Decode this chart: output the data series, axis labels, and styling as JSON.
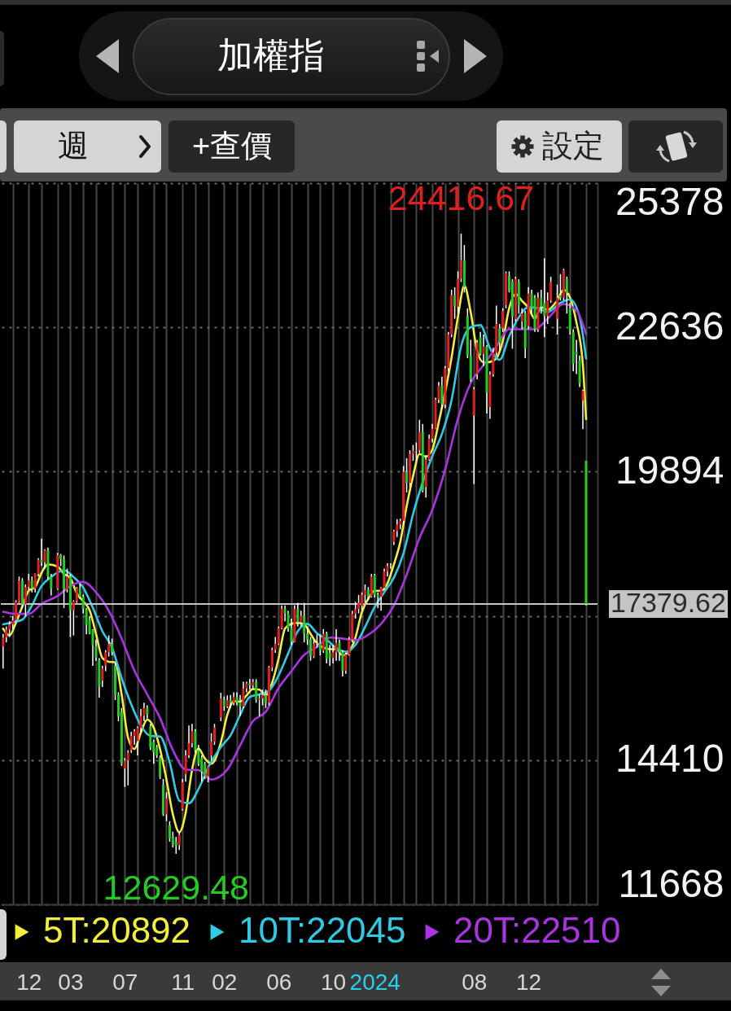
{
  "chart_data": {
    "type": "candlestick",
    "title": "加權指",
    "x": [
      "2021-10-11",
      "2021-10-18",
      "2021-10-25",
      "2021-11-01",
      "2021-11-08",
      "2021-11-15",
      "2021-11-22",
      "2021-11-29",
      "2021-12-06",
      "2021-12-13",
      "2021-12-20",
      "2021-12-27",
      "2022-01-03",
      "2022-01-10",
      "2022-01-17",
      "2022-01-24",
      "2022-02-07",
      "2022-02-14",
      "2022-02-21",
      "2022-02-28",
      "2022-03-07",
      "2022-03-14",
      "2022-03-21",
      "2022-03-28",
      "2022-04-04",
      "2022-04-11",
      "2022-04-18",
      "2022-04-25",
      "2022-05-02",
      "2022-05-09",
      "2022-05-16",
      "2022-05-23",
      "2022-05-30",
      "2022-06-06",
      "2022-06-13",
      "2022-06-20",
      "2022-06-27",
      "2022-07-04",
      "2022-07-11",
      "2022-07-18",
      "2022-07-25",
      "2022-08-01",
      "2022-08-08",
      "2022-08-15",
      "2022-08-22",
      "2022-08-29",
      "2022-09-05",
      "2022-09-12",
      "2022-09-19",
      "2022-09-26",
      "2022-10-03",
      "2022-10-10",
      "2022-10-17",
      "2022-10-24",
      "2022-10-31",
      "2022-11-07",
      "2022-11-14",
      "2022-11-21",
      "2022-11-28",
      "2022-12-05",
      "2022-12-12",
      "2022-12-19",
      "2022-12-26",
      "2023-01-02",
      "2023-01-09",
      "2023-01-16",
      "2023-01-30",
      "2023-02-06",
      "2023-02-13",
      "2023-02-20",
      "2023-02-27",
      "2023-03-06",
      "2023-03-13",
      "2023-03-20",
      "2023-03-27",
      "2023-04-03",
      "2023-04-10",
      "2023-04-17",
      "2023-04-24",
      "2023-05-01",
      "2023-05-08",
      "2023-05-15",
      "2023-05-22",
      "2023-05-29",
      "2023-06-05",
      "2023-06-12",
      "2023-06-19",
      "2023-06-26",
      "2023-07-03",
      "2023-07-10",
      "2023-07-17",
      "2023-07-24",
      "2023-07-31",
      "2023-08-07",
      "2023-08-14",
      "2023-08-21",
      "2023-08-28",
      "2023-09-04",
      "2023-09-11",
      "2023-09-18",
      "2023-09-25",
      "2023-10-02",
      "2023-10-09",
      "2023-10-16",
      "2023-10-23",
      "2023-10-30",
      "2023-11-06",
      "2023-11-13",
      "2023-11-20",
      "2023-11-27",
      "2023-12-04",
      "2023-12-11",
      "2023-12-18",
      "2023-12-25",
      "2024-01-01",
      "2024-01-08",
      "2024-01-15",
      "2024-01-22",
      "2024-01-29",
      "2024-02-05",
      "2024-02-12",
      "2024-02-19",
      "2024-02-26",
      "2024-03-04",
      "2024-03-11",
      "2024-03-18",
      "2024-03-25",
      "2024-04-01",
      "2024-04-08",
      "2024-04-15",
      "2024-04-22",
      "2024-04-29",
      "2024-05-06",
      "2024-05-13",
      "2024-05-20",
      "2024-05-27",
      "2024-06-03",
      "2024-06-10",
      "2024-06-17",
      "2024-06-24",
      "2024-07-01",
      "2024-07-08",
      "2024-07-15",
      "2024-07-22",
      "2024-07-29",
      "2024-08-05",
      "2024-08-12",
      "2024-08-19",
      "2024-08-26",
      "2024-09-02",
      "2024-09-09",
      "2024-09-16",
      "2024-09-23",
      "2024-09-30",
      "2024-10-07",
      "2024-10-14",
      "2024-10-21",
      "2024-10-28",
      "2024-11-04",
      "2024-11-11",
      "2024-11-18",
      "2024-11-25",
      "2024-12-02",
      "2024-12-09",
      "2024-12-16",
      "2024-12-23",
      "2024-12-30",
      "2025-01-06",
      "2025-01-13",
      "2025-01-20",
      "2025-02-03",
      "2025-02-10",
      "2025-02-17",
      "2025-02-24",
      "2025-03-03",
      "2025-03-10",
      "2025-03-17",
      "2025-03-24",
      "2025-03-31",
      "2025-04-07"
    ],
    "ohlc": [
      [
        16570,
        16810,
        16150,
        16740
      ],
      [
        16740,
        16950,
        16650,
        16890
      ],
      [
        16890,
        17050,
        16750,
        16990
      ],
      [
        16990,
        17150,
        16900,
        17070
      ],
      [
        17070,
        17450,
        17030,
        17420
      ],
      [
        17420,
        17900,
        17400,
        17820
      ],
      [
        17820,
        17870,
        17300,
        17370
      ],
      [
        17370,
        17750,
        17150,
        17700
      ],
      [
        17700,
        17950,
        17650,
        17830
      ],
      [
        17830,
        17900,
        17600,
        17670
      ],
      [
        17670,
        17960,
        17600,
        17950
      ],
      [
        17950,
        18250,
        17900,
        18220
      ],
      [
        18220,
        18620,
        18100,
        18170
      ],
      [
        18170,
        18420,
        18050,
        18400
      ],
      [
        18400,
        18450,
        17850,
        17900
      ],
      [
        17900,
        17950,
        17540,
        17670
      ],
      [
        17670,
        18350,
        17650,
        18310
      ],
      [
        18310,
        18330,
        18100,
        18230
      ],
      [
        18230,
        18300,
        17300,
        17650
      ],
      [
        17650,
        18050,
        17600,
        17900
      ],
      [
        17900,
        17950,
        16750,
        17260
      ],
      [
        17260,
        17450,
        16780,
        17430
      ],
      [
        17430,
        17700,
        17400,
        17680
      ],
      [
        17680,
        17770,
        17480,
        17520
      ],
      [
        17520,
        17560,
        17200,
        17280
      ],
      [
        17280,
        17300,
        16800,
        16980
      ],
      [
        17080,
        17150,
        16800,
        16820
      ],
      [
        16880,
        16900,
        16200,
        16590
      ],
      [
        16570,
        16700,
        16300,
        16360
      ],
      [
        16310,
        16350,
        15600,
        15810
      ],
      [
        15920,
        16200,
        15800,
        16150
      ],
      [
        16200,
        16500,
        16100,
        16460
      ],
      [
        16460,
        16780,
        16380,
        16620
      ],
      [
        16620,
        16720,
        16400,
        16460
      ],
      [
        16200,
        16250,
        15550,
        15650
      ],
      [
        15650,
        15700,
        15150,
        15240
      ],
      [
        15330,
        15400,
        14300,
        14340
      ],
      [
        14250,
        14450,
        13900,
        14400
      ],
      [
        14400,
        14600,
        13930,
        14550
      ],
      [
        14600,
        14950,
        14550,
        14870
      ],
      [
        14870,
        15000,
        14700,
        14960
      ],
      [
        14770,
        15050,
        14500,
        15020
      ],
      [
        15020,
        15380,
        14950,
        15250
      ],
      [
        15250,
        15500,
        15150,
        15400
      ],
      [
        15400,
        15450,
        15200,
        15280
      ],
      [
        15050,
        15100,
        14600,
        14650
      ],
      [
        14760,
        14800,
        14340,
        14560
      ],
      [
        14650,
        14700,
        14450,
        14500
      ],
      [
        14450,
        14500,
        14050,
        14100
      ],
      [
        13940,
        14050,
        13350,
        13380
      ],
      [
        13380,
        13800,
        13250,
        13680
      ],
      [
        13170,
        13250,
        12860,
        12920
      ],
      [
        12950,
        13050,
        12750,
        12800
      ],
      [
        12860,
        12950,
        12629.48,
        12790
      ],
      [
        12790,
        13050,
        12700,
        12990
      ],
      [
        13480,
        14050,
        13450,
        13990
      ],
      [
        14140,
        14600,
        14000,
        14500
      ],
      [
        14500,
        15070,
        14450,
        14730
      ],
      [
        14730,
        15100,
        14650,
        14960
      ],
      [
        14960,
        15000,
        14550,
        14600
      ],
      [
        14600,
        14700,
        14300,
        14340
      ],
      [
        14450,
        14500,
        14000,
        14190
      ],
      [
        14340,
        14380,
        14050,
        14100
      ],
      [
        14100,
        14300,
        13990,
        14290
      ],
      [
        14500,
        14920,
        14400,
        14760
      ],
      [
        14760,
        15100,
        14700,
        15030
      ],
      [
        15220,
        15690,
        15150,
        15580
      ],
      [
        15560,
        15620,
        15350,
        15430
      ],
      [
        15430,
        15640,
        15400,
        15550
      ],
      [
        15550,
        15650,
        15400,
        15500
      ],
      [
        15500,
        15700,
        15450,
        15610
      ],
      [
        15610,
        15700,
        15450,
        15510
      ],
      [
        15510,
        15650,
        15250,
        15430
      ],
      [
        15430,
        15900,
        15400,
        15770
      ],
      [
        15770,
        15900,
        15700,
        15870
      ],
      [
        15870,
        15950,
        15750,
        15830
      ],
      [
        15830,
        15950,
        15750,
        15900
      ],
      [
        15900,
        15950,
        15500,
        15560
      ],
      [
        15560,
        15650,
        15250,
        15580
      ],
      [
        15580,
        15750,
        15450,
        15650
      ],
      [
        15650,
        15750,
        15400,
        15500
      ],
      [
        15500,
        16200,
        15450,
        16170
      ],
      [
        16170,
        16550,
        16100,
        16500
      ],
      [
        16500,
        16750,
        16450,
        16620
      ],
      [
        16620,
        16950,
        16600,
        16920
      ],
      [
        16920,
        17350,
        16900,
        17290
      ],
      [
        17290,
        17350,
        17050,
        17200
      ],
      [
        17200,
        17250,
        16850,
        16920
      ],
      [
        16920,
        17100,
        16600,
        16660
      ],
      [
        16660,
        17350,
        16650,
        17280
      ],
      [
        17280,
        17400,
        16950,
        17030
      ],
      [
        17030,
        17250,
        16950,
        17150
      ],
      [
        17150,
        17400,
        16650,
        16810
      ],
      [
        16810,
        16950,
        16600,
        16700
      ],
      [
        16700,
        16750,
        16300,
        16380
      ],
      [
        16380,
        16700,
        16350,
        16620
      ],
      [
        16620,
        16800,
        16550,
        16630
      ],
      [
        16630,
        16800,
        16400,
        16490
      ],
      [
        16490,
        16900,
        16450,
        16810
      ],
      [
        16810,
        16850,
        16250,
        16340
      ],
      [
        16450,
        16600,
        16200,
        16350
      ],
      [
        16350,
        16600,
        16250,
        16460
      ],
      [
        16460,
        16900,
        16300,
        16640
      ],
      [
        16640,
        16700,
        16300,
        16460
      ],
      [
        16460,
        16500,
        16000,
        16110
      ],
      [
        16110,
        16450,
        16050,
        16420
      ],
      [
        16420,
        16750,
        16400,
        16700
      ],
      [
        16700,
        17250,
        16650,
        17190
      ],
      [
        17190,
        17420,
        17100,
        17280
      ],
      [
        17280,
        17550,
        17200,
        17400
      ],
      [
        17350,
        17600,
        17250,
        17550
      ],
      [
        17550,
        17750,
        17400,
        17650
      ],
      [
        17650,
        17700,
        17450,
        17520
      ],
      [
        17520,
        17950,
        17500,
        17900
      ],
      [
        17930,
        17950,
        17500,
        17550
      ],
      [
        17550,
        17600,
        17300,
        17510
      ],
      [
        17510,
        17700,
        17250,
        17680
      ],
      [
        17680,
        18050,
        17650,
        18000
      ],
      [
        18000,
        18150,
        17900,
        18100
      ],
      [
        18100,
        18150,
        18050,
        18090
      ],
      [
        18560,
        18790,
        18500,
        18760
      ],
      [
        18760,
        18990,
        18650,
        18890
      ],
      [
        18890,
        19000,
        18800,
        18960
      ],
      [
        18960,
        20000,
        18900,
        19890
      ],
      [
        19890,
        20150,
        19500,
        19680
      ],
      [
        19680,
        20300,
        19600,
        20230
      ],
      [
        20230,
        20400,
        20100,
        20290
      ],
      [
        20290,
        20450,
        20100,
        20300
      ],
      [
        20300,
        20880,
        20250,
        20650
      ],
      [
        20650,
        20800,
        19500,
        19530
      ],
      [
        19600,
        20200,
        19400,
        20120
      ],
      [
        20120,
        20600,
        20100,
        20520
      ],
      [
        20520,
        20800,
        20450,
        20710
      ],
      [
        20710,
        21300,
        20700,
        21260
      ],
      [
        21260,
        21600,
        21200,
        21530
      ],
      [
        21530,
        21700,
        21100,
        21170
      ],
      [
        21170,
        21900,
        21100,
        21860
      ],
      [
        21860,
        22550,
        21800,
        22500
      ],
      [
        22500,
        23350,
        22450,
        23250
      ],
      [
        23250,
        23400,
        22800,
        23030
      ],
      [
        23030,
        23700,
        22900,
        23560
      ],
      [
        23560,
        24416.67,
        23500,
        23920
      ],
      [
        23920,
        24200,
        23300,
        23400
      ],
      [
        22850,
        23000,
        22050,
        22100
      ],
      [
        22100,
        22400,
        21600,
        21640
      ],
      [
        20960,
        21500,
        19660,
        21460
      ],
      [
        21740,
        22400,
        21650,
        22350
      ],
      [
        22450,
        22550,
        22100,
        22130
      ],
      [
        22130,
        22500,
        21900,
        22270
      ],
      [
        22270,
        22300,
        21000,
        21400
      ],
      [
        21120,
        21800,
        20900,
        21740
      ],
      [
        21740,
        22250,
        21700,
        22160
      ],
      [
        22160,
        23050,
        22100,
        22700
      ],
      [
        22620,
        22700,
        22200,
        22340
      ],
      [
        22620,
        23000,
        22550,
        22950
      ],
      [
        23060,
        23700,
        23000,
        23670
      ],
      [
        23610,
        23700,
        23300,
        23330
      ],
      [
        23510,
        23550,
        22230,
        22840
      ],
      [
        22790,
        23600,
        22750,
        23560
      ],
      [
        23500,
        23550,
        22900,
        23050
      ],
      [
        22750,
        23000,
        22600,
        22900
      ],
      [
        22900,
        22950,
        22050,
        22240
      ],
      [
        22660,
        23400,
        22600,
        23280
      ],
      [
        23280,
        23350,
        22900,
        23000
      ],
      [
        23200,
        23250,
        22550,
        22600
      ],
      [
        22600,
        23300,
        22550,
        23200
      ],
      [
        23200,
        23350,
        22900,
        23030
      ],
      [
        23100,
        23950,
        22450,
        22850
      ],
      [
        22850,
        23300,
        22700,
        23150
      ],
      [
        23150,
        23600,
        23100,
        23500
      ],
      [
        22800,
        23450,
        22500,
        23200
      ],
      [
        23250,
        23650,
        23150,
        23200
      ],
      [
        23200,
        23750,
        23150,
        23720
      ],
      [
        23560,
        23600,
        22900,
        23290
      ],
      [
        23000,
        23100,
        22500,
        22580
      ],
      [
        22550,
        22600,
        21800,
        21950
      ],
      [
        22170,
        22400,
        21750,
        22120
      ],
      [
        22010,
        22100,
        21500,
        21580
      ],
      [
        21250,
        21450,
        20700,
        21430
      ],
      [
        20100,
        20100,
        17350,
        17379.62
      ]
    ],
    "colors": [
      "#e02020",
      "#e02020",
      "#e02020",
      "#e02020",
      "#e02020",
      "#e02020",
      "#22cc22",
      "#e02020",
      "#e02020",
      "#22cc22",
      "#e02020",
      "#e02020",
      "#22cc22",
      "#e02020",
      "#22cc22",
      "#22cc22",
      "#e02020",
      "#22cc22",
      "#22cc22",
      "#e02020",
      "#22cc22",
      "#e02020",
      "#e02020",
      "#22cc22",
      "#22cc22",
      "#22cc22",
      "#22cc22",
      "#22cc22",
      "#22cc22",
      "#22cc22",
      "#e02020",
      "#e02020",
      "#e02020",
      "#22cc22",
      "#22cc22",
      "#22cc22",
      "#22cc22",
      "#e02020",
      "#e02020",
      "#e02020",
      "#e02020",
      "#e02020",
      "#e02020",
      "#e02020",
      "#22cc22",
      "#22cc22",
      "#22cc22",
      "#22cc22",
      "#22cc22",
      "#22cc22",
      "#e02020",
      "#22cc22",
      "#22cc22",
      "#22cc22",
      "#e02020",
      "#e02020",
      "#e02020",
      "#e02020",
      "#e02020",
      "#22cc22",
      "#22cc22",
      "#22cc22",
      "#22cc22",
      "#e02020",
      "#e02020",
      "#e02020",
      "#e02020",
      "#22cc22",
      "#e02020",
      "#22cc22",
      "#e02020",
      "#22cc22",
      "#22cc22",
      "#e02020",
      "#e02020",
      "#22cc22",
      "#e02020",
      "#22cc22",
      "#e02020",
      "#e02020",
      "#22cc22",
      "#e02020",
      "#e02020",
      "#e02020",
      "#e02020",
      "#e02020",
      "#22cc22",
      "#22cc22",
      "#22cc22",
      "#e02020",
      "#22cc22",
      "#e02020",
      "#22cc22",
      "#22cc22",
      "#22cc22",
      "#e02020",
      "#e02020",
      "#22cc22",
      "#e02020",
      "#22cc22",
      "#22cc22",
      "#e02020",
      "#e02020",
      "#22cc22",
      "#22cc22",
      "#e02020",
      "#e02020",
      "#e02020",
      "#e02020",
      "#e02020",
      "#e02020",
      "#e02020",
      "#22cc22",
      "#e02020",
      "#22cc22",
      "#22cc22",
      "#e02020",
      "#e02020",
      "#e02020",
      "#22cc22",
      "#e02020",
      "#e02020",
      "#e02020",
      "#e02020",
      "#22cc22",
      "#e02020",
      "#e02020",
      "#e02020",
      "#e02020",
      "#22cc22",
      "#e02020",
      "#e02020",
      "#e02020",
      "#e02020",
      "#e02020",
      "#22cc22",
      "#e02020",
      "#e02020",
      "#e02020",
      "#22cc22",
      "#e02020",
      "#e02020",
      "#22cc22",
      "#22cc22",
      "#22cc22",
      "#e02020",
      "#e02020",
      "#22cc22",
      "#e02020",
      "#22cc22",
      "#e02020",
      "#e02020",
      "#e02020",
      "#22cc22",
      "#e02020",
      "#e02020",
      "#22cc22",
      "#22cc22",
      "#e02020",
      "#22cc22",
      "#e02020",
      "#22cc22",
      "#e02020",
      "#22cc22",
      "#22cc22",
      "#e02020",
      "#22cc22",
      "#22cc22",
      "#e02020",
      "#e02020",
      "#e02020",
      "#22cc22",
      "#e02020",
      "#22cc22",
      "#22cc22",
      "#22cc22",
      "#22cc22",
      "#22cc22",
      "#e02020",
      "#22cc22"
    ],
    "series": [
      {
        "name": "5T:20892",
        "type": "line",
        "color": "#f2ee3a",
        "x": [
          "2021-10-11",
          "2021-10-25",
          "2021-11-08",
          "2021-11-22",
          "2021-12-06",
          "2021-12-20",
          "2022-01-03",
          "2022-01-17",
          "2022-02-07",
          "2022-02-21",
          "2022-03-07",
          "2022-03-21",
          "2022-04-04",
          "2022-04-18",
          "2022-05-02",
          "2022-05-16",
          "2022-05-30",
          "2022-06-13",
          "2022-06-27",
          "2022-07-11",
          "2022-07-25",
          "2022-08-08",
          "2022-08-22",
          "2022-09-05",
          "2022-09-19",
          "2022-10-03",
          "2022-10-17",
          "2022-10-31",
          "2022-11-14",
          "2022-11-28",
          "2022-12-12",
          "2022-12-26",
          "2023-01-09",
          "2023-01-30",
          "2023-02-13",
          "2023-02-27",
          "2023-03-13",
          "2023-03-27",
          "2023-04-10",
          "2023-04-24",
          "2023-05-08",
          "2023-05-22",
          "2023-06-05",
          "2023-06-19",
          "2023-07-03",
          "2023-07-17",
          "2023-07-31",
          "2023-08-14",
          "2023-08-28",
          "2023-09-25",
          "2023-10-09",
          "2023-10-23",
          "2023-11-06",
          "2023-11-20",
          "2023-12-04",
          "2023-12-18",
          "2024-01-01",
          "2024-01-15",
          "2024-01-29",
          "2024-02-12",
          "2024-02-26",
          "2024-03-11",
          "2024-03-25",
          "2024-04-08",
          "2024-04-22",
          "2024-05-06",
          "2024-05-20",
          "2024-06-17",
          "2024-07-01",
          "2024-07-15",
          "2024-07-29",
          "2024-08-12",
          "2024-08-26",
          "2024-09-09",
          "2024-09-23",
          "2024-10-07",
          "2024-10-21",
          "2024-11-04",
          "2024-11-18",
          "2024-12-02",
          "2024-12-16",
          "2024-12-30",
          "2025-01-13",
          "2025-02-03",
          "2025-02-17",
          "2025-03-03",
          "2025-03-17",
          "2025-03-31",
          "2025-04-07"
        ],
        "values": [
          16910,
          16780,
          17020,
          17330,
          17630,
          17700,
          17970,
          18130,
          18090,
          17950,
          17870,
          17580,
          17430,
          17260,
          16810,
          16350,
          16280,
          16270,
          15660,
          14840,
          14620,
          14930,
          15180,
          15030,
          14620,
          14040,
          13380,
          13040,
          13410,
          14230,
          14630,
          14440,
          14340,
          14750,
          15270,
          15530,
          15520,
          15640,
          15760,
          15750,
          15640,
          15880,
          16340,
          16910,
          17000,
          17020,
          16990,
          16810,
          16630,
          16520,
          16520,
          16400,
          16470,
          16740,
          17220,
          17480,
          17630,
          17630,
          17770,
          18130,
          18560,
          19240,
          19810,
          20230,
          20180,
          20310,
          20830,
          22060,
          22840,
          23430,
          22920,
          22190,
          21970,
          21980,
          22050,
          22380,
          23000,
          23270,
          23140,
          23010,
          22800,
          23020,
          22970,
          23150,
          23350,
          23200,
          22730,
          21930,
          20892
        ]
      },
      {
        "name": "10T:22045",
        "type": "line",
        "color": "#2fcbe6",
        "x": [
          "2021-10-11",
          "2021-11-01",
          "2021-11-22",
          "2021-12-13",
          "2022-01-03",
          "2022-01-24",
          "2022-02-21",
          "2022-03-14",
          "2022-04-04",
          "2022-04-25",
          "2022-05-16",
          "2022-06-06",
          "2022-06-27",
          "2022-07-18",
          "2022-08-08",
          "2022-08-29",
          "2022-09-19",
          "2022-10-10",
          "2022-10-31",
          "2022-11-21",
          "2022-12-12",
          "2023-01-02",
          "2023-01-30",
          "2023-02-20",
          "2023-03-13",
          "2023-04-03",
          "2023-04-24",
          "2023-05-15",
          "2023-06-05",
          "2023-06-26",
          "2023-07-17",
          "2023-08-07",
          "2023-08-28",
          "2023-09-18",
          "2023-10-09",
          "2023-10-30",
          "2023-11-20",
          "2023-12-11",
          "2024-01-01",
          "2024-01-22",
          "2024-02-12",
          "2024-03-04",
          "2024-03-25",
          "2024-05-06",
          "2024-05-27",
          "2024-06-17",
          "2024-07-08",
          "2024-07-29",
          "2024-08-19",
          "2024-09-09",
          "2024-09-30",
          "2024-10-21",
          "2024-11-11",
          "2024-12-02",
          "2024-12-23",
          "2025-01-13",
          "2025-02-10",
          "2025-03-03",
          "2025-03-24",
          "2025-04-07"
        ],
        "values": [
          16990,
          17030,
          17080,
          17350,
          17720,
          17890,
          18020,
          17890,
          17690,
          17310,
          16860,
          16550,
          15970,
          15470,
          15070,
          14870,
          14860,
          14370,
          13640,
          13590,
          13860,
          14270,
          14660,
          14880,
          15270,
          15610,
          15660,
          15730,
          16020,
          16440,
          16860,
          17000,
          16820,
          16700,
          16540,
          16470,
          16600,
          16940,
          17320,
          17600,
          17880,
          18340,
          19090,
          20190,
          20610,
          21250,
          22280,
          22640,
          22680,
          22240,
          22020,
          22470,
          22830,
          23020,
          23000,
          22930,
          23100,
          23170,
          22830,
          22045
        ]
      },
      {
        "name": "20T:22510",
        "type": "line",
        "color": "#a934e0",
        "x": [
          "2021-10-11",
          "2021-11-08",
          "2021-12-06",
          "2022-01-03",
          "2022-02-07",
          "2022-03-07",
          "2022-04-04",
          "2022-05-02",
          "2022-05-30",
          "2022-06-27",
          "2022-07-25",
          "2022-08-22",
          "2022-09-19",
          "2022-10-17",
          "2022-11-14",
          "2022-12-12",
          "2023-01-09",
          "2023-02-13",
          "2023-03-13",
          "2023-04-10",
          "2023-05-08",
          "2023-06-05",
          "2023-07-03",
          "2023-07-31",
          "2023-08-28",
          "2023-09-25",
          "2023-10-23",
          "2023-11-20",
          "2023-12-18",
          "2024-01-15",
          "2024-02-12",
          "2024-03-11",
          "2024-04-08",
          "2024-05-06",
          "2024-06-03",
          "2024-07-01",
          "2024-07-29",
          "2024-08-26",
          "2024-09-23",
          "2024-10-21",
          "2024-11-18",
          "2024-12-16",
          "2025-01-13",
          "2025-02-17",
          "2025-03-17",
          "2025-04-07"
        ],
        "values": [
          17230,
          17190,
          17190,
          17380,
          17530,
          17720,
          17800,
          17600,
          17250,
          16720,
          16110,
          15660,
          15210,
          14600,
          14230,
          14220,
          14040,
          14230,
          14690,
          15150,
          15330,
          15780,
          16100,
          16410,
          16560,
          16740,
          16720,
          16690,
          16790,
          17000,
          17350,
          17940,
          18630,
          19170,
          19930,
          20900,
          21580,
          21920,
          22270,
          22600,
          22600,
          22600,
          22800,
          23080,
          22960,
          22510
        ]
      }
    ],
    "xlim": [
      "2021-10-06",
      "2025-05-02"
    ],
    "xticks": [
      {
        "value": "2021-11-01",
        "label": null
      },
      {
        "value": "2021-12-06",
        "label": "12"
      },
      {
        "value": "2022-01-03",
        "label": null
      },
      {
        "value": "2022-02-07",
        "label": null
      },
      {
        "value": "2022-03-07",
        "label": "03"
      },
      {
        "value": "2022-04-04",
        "label": null
      },
      {
        "value": "2022-05-02",
        "label": null
      },
      {
        "value": "2022-06-06",
        "label": null
      },
      {
        "value": "2022-07-04",
        "label": "07"
      },
      {
        "value": "2022-08-01",
        "label": null
      },
      {
        "value": "2022-09-05",
        "label": null
      },
      {
        "value": "2022-10-03",
        "label": null
      },
      {
        "value": "2022-11-07",
        "label": "11"
      },
      {
        "value": "2022-12-05",
        "label": null
      },
      {
        "value": "2023-01-02",
        "label": null
      },
      {
        "value": "2023-02-06",
        "label": "02"
      },
      {
        "value": "2023-03-06",
        "label": null
      },
      {
        "value": "2023-04-03",
        "label": null
      },
      {
        "value": "2023-05-01",
        "label": null
      },
      {
        "value": "2023-06-05",
        "label": "06"
      },
      {
        "value": "2023-07-03",
        "label": null
      },
      {
        "value": "2023-08-07",
        "label": null
      },
      {
        "value": "2023-09-04",
        "label": null
      },
      {
        "value": "2023-10-02",
        "label": "10"
      },
      {
        "value": "2023-11-06",
        "label": null
      },
      {
        "value": "2023-12-04",
        "label": null
      },
      {
        "value": "2024-01-01",
        "label": "2024"
      },
      {
        "value": "2024-02-05",
        "label": null
      },
      {
        "value": "2024-03-04",
        "label": null
      },
      {
        "value": "2024-04-01",
        "label": null
      },
      {
        "value": "2024-05-06",
        "label": null
      },
      {
        "value": "2024-06-03",
        "label": null
      },
      {
        "value": "2024-07-01",
        "label": null
      },
      {
        "value": "2024-08-05",
        "label": "08"
      },
      {
        "value": "2024-09-02",
        "label": null
      },
      {
        "value": "2024-10-07",
        "label": null
      },
      {
        "value": "2024-11-04",
        "label": null
      },
      {
        "value": "2024-12-02",
        "label": "12"
      },
      {
        "value": "2025-01-06",
        "label": null
      },
      {
        "value": "2025-02-03",
        "label": null
      },
      {
        "value": "2025-03-03",
        "label": null
      },
      {
        "value": "2025-04-07",
        "label": null
      }
    ],
    "ylim": [
      11668,
      25378
    ],
    "yticks": [
      11668,
      14410,
      {
        "value": 17152,
        "label": null
      },
      19894,
      22636,
      25378
    ],
    "grid": true,
    "legend": "bottom",
    "ref_lines": [
      {
        "axis": "y",
        "value": 17379.62,
        "label": "17379.62",
        "color": "#c4c4c4"
      }
    ],
    "annotations": [
      {
        "text": "24416.67",
        "x": "2024-07-08",
        "y": 24416.67
      },
      {
        "text": "12629.48",
        "x": "2022-10-24",
        "y": 12629.48
      },
      "週",
      "+查價",
      "設定"
    ]
  }
}
